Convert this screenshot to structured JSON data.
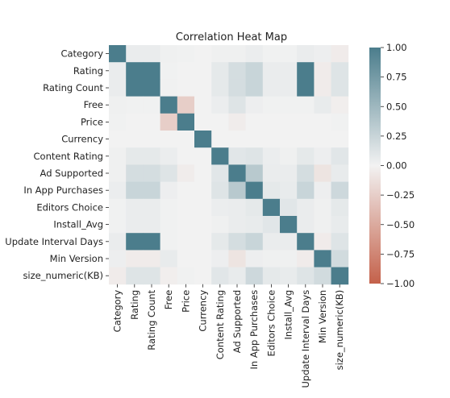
{
  "chart_data": {
    "type": "heatmap",
    "title": "Correlation Heat Map",
    "labels": [
      "Category",
      "Rating",
      "Rating Count",
      "Free",
      "Price",
      "Currency",
      "Content Rating",
      "Ad Supported",
      "In App Purchases",
      "Editors Choice",
      "Install_Avg",
      "Update Interval Days",
      "Min Version",
      "size_numeric(KB)"
    ],
    "matrix": [
      [
        1.0,
        0.05,
        0.05,
        0.02,
        0.01,
        0.0,
        0.02,
        0.02,
        0.04,
        0.01,
        0.01,
        0.05,
        0.03,
        -0.05
      ],
      [
        0.05,
        1.0,
        1.0,
        0.01,
        0.0,
        0.0,
        0.08,
        0.18,
        0.25,
        0.05,
        0.05,
        1.0,
        -0.05,
        0.12
      ],
      [
        0.05,
        1.0,
        1.0,
        0.01,
        0.0,
        0.0,
        0.08,
        0.18,
        0.25,
        0.05,
        0.05,
        1.0,
        -0.05,
        0.12
      ],
      [
        0.02,
        0.01,
        0.01,
        1.0,
        -0.25,
        0.0,
        0.04,
        0.12,
        0.03,
        0.01,
        0.01,
        0.01,
        0.06,
        -0.03
      ],
      [
        0.01,
        0.0,
        0.0,
        -0.25,
        1.0,
        0.0,
        0.0,
        -0.04,
        0.0,
        0.0,
        0.0,
        0.0,
        0.0,
        0.01
      ],
      [
        0.0,
        0.0,
        0.0,
        0.0,
        0.0,
        1.0,
        0.0,
        0.0,
        0.0,
        0.0,
        0.0,
        0.0,
        0.0,
        0.0
      ],
      [
        0.02,
        0.08,
        0.08,
        0.04,
        0.0,
        0.0,
        1.0,
        0.1,
        0.12,
        0.04,
        0.02,
        0.08,
        0.03,
        0.1
      ],
      [
        0.02,
        0.18,
        0.18,
        0.12,
        -0.04,
        0.0,
        0.1,
        1.0,
        0.35,
        0.05,
        0.05,
        0.18,
        -0.1,
        0.06
      ],
      [
        0.04,
        0.25,
        0.25,
        0.03,
        0.0,
        0.0,
        0.12,
        0.35,
        1.0,
        0.08,
        0.06,
        0.25,
        0.03,
        0.22
      ],
      [
        0.01,
        0.05,
        0.05,
        0.01,
        0.0,
        0.0,
        0.04,
        0.05,
        0.08,
        1.0,
        0.1,
        0.05,
        0.02,
        0.08
      ],
      [
        0.01,
        0.05,
        0.05,
        0.01,
        0.0,
        0.0,
        0.02,
        0.05,
        0.06,
        0.1,
        1.0,
        0.05,
        0.02,
        0.06
      ],
      [
        0.05,
        1.0,
        1.0,
        0.01,
        0.0,
        0.0,
        0.08,
        0.18,
        0.25,
        0.05,
        0.05,
        1.0,
        -0.05,
        0.12
      ],
      [
        0.03,
        -0.05,
        -0.05,
        0.06,
        0.0,
        0.0,
        0.03,
        -0.1,
        0.03,
        0.02,
        0.02,
        -0.05,
        1.0,
        0.2
      ],
      [
        -0.05,
        0.12,
        0.12,
        -0.03,
        0.01,
        0.0,
        0.1,
        0.06,
        0.22,
        0.08,
        0.06,
        0.12,
        0.2,
        1.0
      ]
    ],
    "vmin": -1.0,
    "vmax": 1.0,
    "colorbar_ticks": [
      1.0,
      0.75,
      0.5,
      0.25,
      0.0,
      -0.25,
      -0.5,
      -0.75,
      -1.0
    ],
    "colorbar_tick_labels": [
      "1.00",
      "0.75",
      "0.50",
      "0.25",
      "0.00",
      "−0.25",
      "−0.50",
      "−0.75",
      "−1.00"
    ],
    "colormap": {
      "negative": "#c4614a",
      "mid": "#f2f2f2",
      "positive": "#4b7d8c"
    }
  }
}
